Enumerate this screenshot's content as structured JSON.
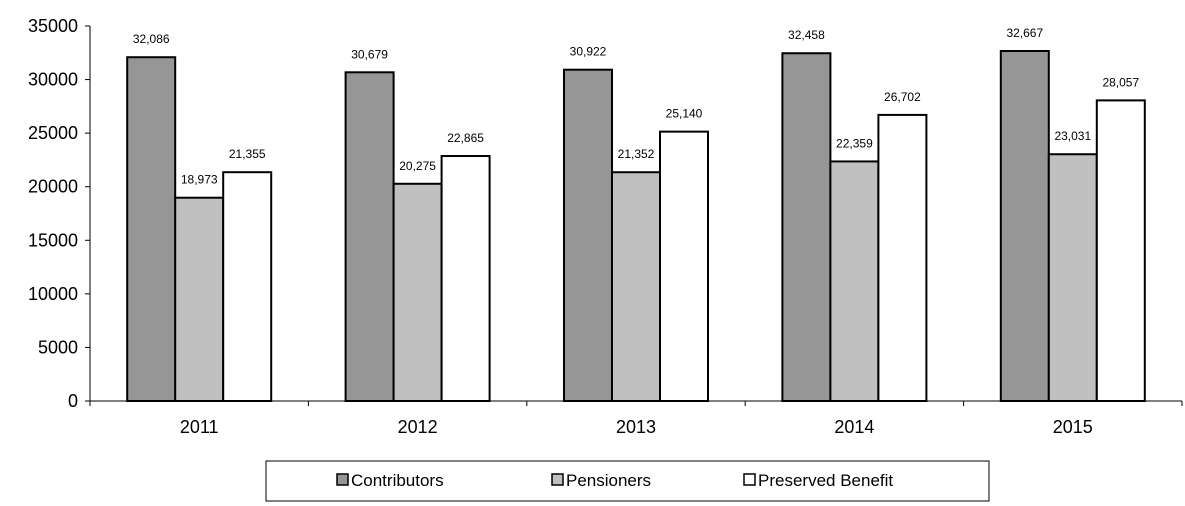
{
  "chart_data": {
    "type": "bar",
    "categories": [
      "2011",
      "2012",
      "2013",
      "2014",
      "2015"
    ],
    "series": [
      {
        "name": "Contributors",
        "values": [
          32086,
          30679,
          30922,
          32458,
          32667
        ],
        "color": "#969696",
        "labels": [
          "32,086",
          "30,679",
          "30,922",
          "32,458",
          "32,667"
        ]
      },
      {
        "name": "Pensioners",
        "values": [
          18973,
          20275,
          21352,
          22359,
          23031
        ],
        "color": "#c0c0c0",
        "labels": [
          "18,973",
          "20,275",
          "21,352",
          "22,359",
          "23,031"
        ]
      },
      {
        "name": "Preserved Benefit",
        "values": [
          21355,
          22865,
          25140,
          26702,
          28057
        ],
        "color": "#ffffff",
        "labels": [
          "21,355",
          "22,865",
          "25,140",
          "26,702",
          "28,057"
        ]
      }
    ],
    "y_ticks": [
      "0",
      "5000",
      "10000",
      "15000",
      "20000",
      "25000",
      "30000",
      "35000"
    ],
    "ylim": [
      0,
      35000
    ],
    "legend_position": "bottom",
    "grid": false
  }
}
